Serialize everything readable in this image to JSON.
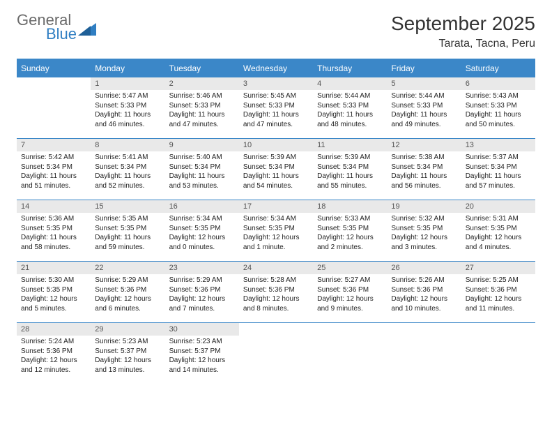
{
  "logo": {
    "line1": "General",
    "line2": "Blue"
  },
  "title": "September 2025",
  "location": "Tarata, Tacna, Peru",
  "colors": {
    "header_bg": "#3b87c8",
    "header_text": "#ffffff",
    "daynum_bg": "#e9e9e9",
    "border": "#3b87c8",
    "logo_gray": "#6a6a6a",
    "logo_blue": "#2f7ec2",
    "body_text": "#222222",
    "page_bg": "#ffffff"
  },
  "day_headers": [
    "Sunday",
    "Monday",
    "Tuesday",
    "Wednesday",
    "Thursday",
    "Friday",
    "Saturday"
  ],
  "weeks": [
    [
      null,
      {
        "n": "1",
        "sunrise": "Sunrise: 5:47 AM",
        "sunset": "Sunset: 5:33 PM",
        "daylight": "Daylight: 11 hours and 46 minutes."
      },
      {
        "n": "2",
        "sunrise": "Sunrise: 5:46 AM",
        "sunset": "Sunset: 5:33 PM",
        "daylight": "Daylight: 11 hours and 47 minutes."
      },
      {
        "n": "3",
        "sunrise": "Sunrise: 5:45 AM",
        "sunset": "Sunset: 5:33 PM",
        "daylight": "Daylight: 11 hours and 47 minutes."
      },
      {
        "n": "4",
        "sunrise": "Sunrise: 5:44 AM",
        "sunset": "Sunset: 5:33 PM",
        "daylight": "Daylight: 11 hours and 48 minutes."
      },
      {
        "n": "5",
        "sunrise": "Sunrise: 5:44 AM",
        "sunset": "Sunset: 5:33 PM",
        "daylight": "Daylight: 11 hours and 49 minutes."
      },
      {
        "n": "6",
        "sunrise": "Sunrise: 5:43 AM",
        "sunset": "Sunset: 5:33 PM",
        "daylight": "Daylight: 11 hours and 50 minutes."
      }
    ],
    [
      {
        "n": "7",
        "sunrise": "Sunrise: 5:42 AM",
        "sunset": "Sunset: 5:34 PM",
        "daylight": "Daylight: 11 hours and 51 minutes."
      },
      {
        "n": "8",
        "sunrise": "Sunrise: 5:41 AM",
        "sunset": "Sunset: 5:34 PM",
        "daylight": "Daylight: 11 hours and 52 minutes."
      },
      {
        "n": "9",
        "sunrise": "Sunrise: 5:40 AM",
        "sunset": "Sunset: 5:34 PM",
        "daylight": "Daylight: 11 hours and 53 minutes."
      },
      {
        "n": "10",
        "sunrise": "Sunrise: 5:39 AM",
        "sunset": "Sunset: 5:34 PM",
        "daylight": "Daylight: 11 hours and 54 minutes."
      },
      {
        "n": "11",
        "sunrise": "Sunrise: 5:39 AM",
        "sunset": "Sunset: 5:34 PM",
        "daylight": "Daylight: 11 hours and 55 minutes."
      },
      {
        "n": "12",
        "sunrise": "Sunrise: 5:38 AM",
        "sunset": "Sunset: 5:34 PM",
        "daylight": "Daylight: 11 hours and 56 minutes."
      },
      {
        "n": "13",
        "sunrise": "Sunrise: 5:37 AM",
        "sunset": "Sunset: 5:34 PM",
        "daylight": "Daylight: 11 hours and 57 minutes."
      }
    ],
    [
      {
        "n": "14",
        "sunrise": "Sunrise: 5:36 AM",
        "sunset": "Sunset: 5:35 PM",
        "daylight": "Daylight: 11 hours and 58 minutes."
      },
      {
        "n": "15",
        "sunrise": "Sunrise: 5:35 AM",
        "sunset": "Sunset: 5:35 PM",
        "daylight": "Daylight: 11 hours and 59 minutes."
      },
      {
        "n": "16",
        "sunrise": "Sunrise: 5:34 AM",
        "sunset": "Sunset: 5:35 PM",
        "daylight": "Daylight: 12 hours and 0 minutes."
      },
      {
        "n": "17",
        "sunrise": "Sunrise: 5:34 AM",
        "sunset": "Sunset: 5:35 PM",
        "daylight": "Daylight: 12 hours and 1 minute."
      },
      {
        "n": "18",
        "sunrise": "Sunrise: 5:33 AM",
        "sunset": "Sunset: 5:35 PM",
        "daylight": "Daylight: 12 hours and 2 minutes."
      },
      {
        "n": "19",
        "sunrise": "Sunrise: 5:32 AM",
        "sunset": "Sunset: 5:35 PM",
        "daylight": "Daylight: 12 hours and 3 minutes."
      },
      {
        "n": "20",
        "sunrise": "Sunrise: 5:31 AM",
        "sunset": "Sunset: 5:35 PM",
        "daylight": "Daylight: 12 hours and 4 minutes."
      }
    ],
    [
      {
        "n": "21",
        "sunrise": "Sunrise: 5:30 AM",
        "sunset": "Sunset: 5:35 PM",
        "daylight": "Daylight: 12 hours and 5 minutes."
      },
      {
        "n": "22",
        "sunrise": "Sunrise: 5:29 AM",
        "sunset": "Sunset: 5:36 PM",
        "daylight": "Daylight: 12 hours and 6 minutes."
      },
      {
        "n": "23",
        "sunrise": "Sunrise: 5:29 AM",
        "sunset": "Sunset: 5:36 PM",
        "daylight": "Daylight: 12 hours and 7 minutes."
      },
      {
        "n": "24",
        "sunrise": "Sunrise: 5:28 AM",
        "sunset": "Sunset: 5:36 PM",
        "daylight": "Daylight: 12 hours and 8 minutes."
      },
      {
        "n": "25",
        "sunrise": "Sunrise: 5:27 AM",
        "sunset": "Sunset: 5:36 PM",
        "daylight": "Daylight: 12 hours and 9 minutes."
      },
      {
        "n": "26",
        "sunrise": "Sunrise: 5:26 AM",
        "sunset": "Sunset: 5:36 PM",
        "daylight": "Daylight: 12 hours and 10 minutes."
      },
      {
        "n": "27",
        "sunrise": "Sunrise: 5:25 AM",
        "sunset": "Sunset: 5:36 PM",
        "daylight": "Daylight: 12 hours and 11 minutes."
      }
    ],
    [
      {
        "n": "28",
        "sunrise": "Sunrise: 5:24 AM",
        "sunset": "Sunset: 5:36 PM",
        "daylight": "Daylight: 12 hours and 12 minutes."
      },
      {
        "n": "29",
        "sunrise": "Sunrise: 5:23 AM",
        "sunset": "Sunset: 5:37 PM",
        "daylight": "Daylight: 12 hours and 13 minutes."
      },
      {
        "n": "30",
        "sunrise": "Sunrise: 5:23 AM",
        "sunset": "Sunset: 5:37 PM",
        "daylight": "Daylight: 12 hours and 14 minutes."
      },
      null,
      null,
      null,
      null
    ]
  ]
}
